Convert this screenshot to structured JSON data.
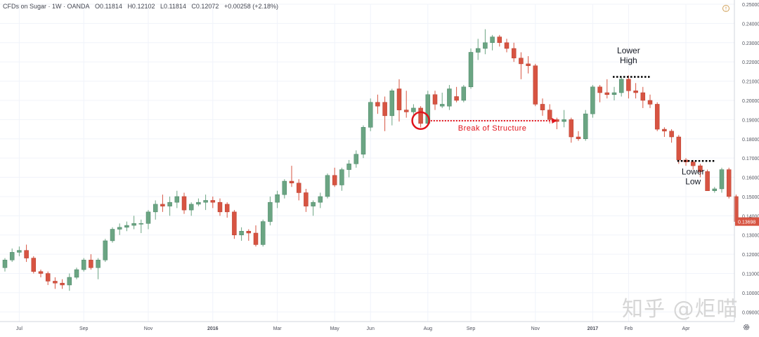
{
  "header": {
    "symbol": "CFDs on Sugar · 1W · OANDA",
    "open": "O0.11814",
    "high": "H0.12102",
    "low": "L0.11814",
    "close": "C0.12072",
    "change": "+0.00258 (+2.18%)"
  },
  "watermark": "知乎 @炬喵",
  "colors": {
    "bull": "#6ba583",
    "bear": "#d75442",
    "grid": "#f0f3fa",
    "axis_text": "#50535e",
    "annotation": "#e0141c",
    "price_tag": "#d75442"
  },
  "icons": {
    "settings": "gear-icon",
    "alert": "alert-icon"
  },
  "chart_data": {
    "type": "candlestick",
    "ylim": [
      0.085,
      0.25
    ],
    "y_ticks": [
      0.09,
      0.1,
      0.11,
      0.12,
      0.13,
      0.14,
      0.15,
      0.16,
      0.17,
      0.18,
      0.19,
      0.2,
      0.21,
      0.22,
      0.23,
      0.24,
      0.25
    ],
    "y_tick_labels": [
      "0.09000",
      "0.10000",
      "0.11000",
      "0.12000",
      "0.13000",
      "0.14000",
      "0.15000",
      "0.16000",
      "0.17000",
      "0.18000",
      "0.19000",
      "0.20000",
      "0.21000",
      "0.22000",
      "0.23000",
      "0.24000",
      "0.25000"
    ],
    "x_ticks": [
      {
        "label": "Jul",
        "index": 2,
        "bold": false
      },
      {
        "label": "Sep",
        "index": 11,
        "bold": false
      },
      {
        "label": "Nov",
        "index": 20,
        "bold": false
      },
      {
        "label": "2016",
        "index": 29,
        "bold": true
      },
      {
        "label": "Mar",
        "index": 38,
        "bold": false
      },
      {
        "label": "May",
        "index": 46,
        "bold": false
      },
      {
        "label": "Jun",
        "index": 51,
        "bold": false
      },
      {
        "label": "Aug",
        "index": 59,
        "bold": false
      },
      {
        "label": "Sep",
        "index": 65,
        "bold": false
      },
      {
        "label": "Nov",
        "index": 74,
        "bold": false
      },
      {
        "label": "2017",
        "index": 82,
        "bold": true
      },
      {
        "label": "Feb",
        "index": 87,
        "bold": false
      },
      {
        "label": "Apr",
        "index": 95,
        "bold": false
      }
    ],
    "last_price_label": "0.13698",
    "last_price": 0.13698,
    "candles": [
      {
        "o": 0.113,
        "h": 0.118,
        "l": 0.111,
        "c": 0.117
      },
      {
        "o": 0.117,
        "h": 0.123,
        "l": 0.116,
        "c": 0.121
      },
      {
        "o": 0.121,
        "h": 0.124,
        "l": 0.119,
        "c": 0.122
      },
      {
        "o": 0.122,
        "h": 0.125,
        "l": 0.116,
        "c": 0.118
      },
      {
        "o": 0.118,
        "h": 0.119,
        "l": 0.11,
        "c": 0.111
      },
      {
        "o": 0.111,
        "h": 0.112,
        "l": 0.108,
        "c": 0.11
      },
      {
        "o": 0.11,
        "h": 0.111,
        "l": 0.104,
        "c": 0.106
      },
      {
        "o": 0.106,
        "h": 0.108,
        "l": 0.102,
        "c": 0.105
      },
      {
        "o": 0.105,
        "h": 0.107,
        "l": 0.102,
        "c": 0.104
      },
      {
        "o": 0.104,
        "h": 0.11,
        "l": 0.101,
        "c": 0.108
      },
      {
        "o": 0.108,
        "h": 0.113,
        "l": 0.107,
        "c": 0.112
      },
      {
        "o": 0.112,
        "h": 0.118,
        "l": 0.111,
        "c": 0.117
      },
      {
        "o": 0.117,
        "h": 0.12,
        "l": 0.112,
        "c": 0.113
      },
      {
        "o": 0.113,
        "h": 0.118,
        "l": 0.107,
        "c": 0.117
      },
      {
        "o": 0.117,
        "h": 0.128,
        "l": 0.116,
        "c": 0.127
      },
      {
        "o": 0.127,
        "h": 0.134,
        "l": 0.126,
        "c": 0.133
      },
      {
        "o": 0.133,
        "h": 0.136,
        "l": 0.13,
        "c": 0.134
      },
      {
        "o": 0.134,
        "h": 0.137,
        "l": 0.132,
        "c": 0.135
      },
      {
        "o": 0.135,
        "h": 0.14,
        "l": 0.133,
        "c": 0.136
      },
      {
        "o": 0.136,
        "h": 0.138,
        "l": 0.131,
        "c": 0.136
      },
      {
        "o": 0.136,
        "h": 0.143,
        "l": 0.133,
        "c": 0.142
      },
      {
        "o": 0.142,
        "h": 0.148,
        "l": 0.138,
        "c": 0.146
      },
      {
        "o": 0.146,
        "h": 0.151,
        "l": 0.142,
        "c": 0.145
      },
      {
        "o": 0.145,
        "h": 0.15,
        "l": 0.14,
        "c": 0.147
      },
      {
        "o": 0.147,
        "h": 0.153,
        "l": 0.144,
        "c": 0.15
      },
      {
        "o": 0.15,
        "h": 0.152,
        "l": 0.141,
        "c": 0.143
      },
      {
        "o": 0.143,
        "h": 0.147,
        "l": 0.14,
        "c": 0.146
      },
      {
        "o": 0.146,
        "h": 0.149,
        "l": 0.145,
        "c": 0.147
      },
      {
        "o": 0.147,
        "h": 0.151,
        "l": 0.143,
        "c": 0.148
      },
      {
        "o": 0.148,
        "h": 0.15,
        "l": 0.144,
        "c": 0.147
      },
      {
        "o": 0.147,
        "h": 0.149,
        "l": 0.14,
        "c": 0.142
      },
      {
        "o": 0.146,
        "h": 0.147,
        "l": 0.139,
        "c": 0.142
      },
      {
        "o": 0.142,
        "h": 0.143,
        "l": 0.128,
        "c": 0.13
      },
      {
        "o": 0.13,
        "h": 0.134,
        "l": 0.127,
        "c": 0.132
      },
      {
        "o": 0.132,
        "h": 0.133,
        "l": 0.127,
        "c": 0.131
      },
      {
        "o": 0.131,
        "h": 0.135,
        "l": 0.124,
        "c": 0.125
      },
      {
        "o": 0.125,
        "h": 0.138,
        "l": 0.124,
        "c": 0.137
      },
      {
        "o": 0.137,
        "h": 0.15,
        "l": 0.135,
        "c": 0.147
      },
      {
        "o": 0.147,
        "h": 0.153,
        "l": 0.144,
        "c": 0.151
      },
      {
        "o": 0.151,
        "h": 0.159,
        "l": 0.149,
        "c": 0.158
      },
      {
        "o": 0.158,
        "h": 0.166,
        "l": 0.155,
        "c": 0.157
      },
      {
        "o": 0.157,
        "h": 0.159,
        "l": 0.148,
        "c": 0.152
      },
      {
        "o": 0.152,
        "h": 0.154,
        "l": 0.142,
        "c": 0.145
      },
      {
        "o": 0.145,
        "h": 0.148,
        "l": 0.14,
        "c": 0.147
      },
      {
        "o": 0.147,
        "h": 0.152,
        "l": 0.144,
        "c": 0.15
      },
      {
        "o": 0.15,
        "h": 0.162,
        "l": 0.149,
        "c": 0.161
      },
      {
        "o": 0.161,
        "h": 0.165,
        "l": 0.155,
        "c": 0.156
      },
      {
        "o": 0.156,
        "h": 0.165,
        "l": 0.153,
        "c": 0.164
      },
      {
        "o": 0.164,
        "h": 0.169,
        "l": 0.16,
        "c": 0.167
      },
      {
        "o": 0.167,
        "h": 0.174,
        "l": 0.165,
        "c": 0.172
      },
      {
        "o": 0.172,
        "h": 0.187,
        "l": 0.17,
        "c": 0.186
      },
      {
        "o": 0.186,
        "h": 0.201,
        "l": 0.184,
        "c": 0.199
      },
      {
        "o": 0.199,
        "h": 0.203,
        "l": 0.193,
        "c": 0.197
      },
      {
        "o": 0.199,
        "h": 0.202,
        "l": 0.184,
        "c": 0.192
      },
      {
        "o": 0.192,
        "h": 0.206,
        "l": 0.187,
        "c": 0.205
      },
      {
        "o": 0.206,
        "h": 0.211,
        "l": 0.189,
        "c": 0.195
      },
      {
        "o": 0.195,
        "h": 0.205,
        "l": 0.191,
        "c": 0.194
      },
      {
        "o": 0.194,
        "h": 0.198,
        "l": 0.191,
        "c": 0.196
      },
      {
        "o": 0.196,
        "h": 0.197,
        "l": 0.186,
        "c": 0.188
      },
      {
        "o": 0.188,
        "h": 0.205,
        "l": 0.187,
        "c": 0.203
      },
      {
        "o": 0.203,
        "h": 0.205,
        "l": 0.195,
        "c": 0.198
      },
      {
        "o": 0.197,
        "h": 0.204,
        "l": 0.196,
        "c": 0.198
      },
      {
        "o": 0.197,
        "h": 0.208,
        "l": 0.195,
        "c": 0.206
      },
      {
        "o": 0.202,
        "h": 0.207,
        "l": 0.199,
        "c": 0.2
      },
      {
        "o": 0.2,
        "h": 0.208,
        "l": 0.199,
        "c": 0.207
      },
      {
        "o": 0.207,
        "h": 0.227,
        "l": 0.206,
        "c": 0.225
      },
      {
        "o": 0.225,
        "h": 0.232,
        "l": 0.221,
        "c": 0.227
      },
      {
        "o": 0.227,
        "h": 0.237,
        "l": 0.224,
        "c": 0.23
      },
      {
        "o": 0.23,
        "h": 0.234,
        "l": 0.226,
        "c": 0.233
      },
      {
        "o": 0.233,
        "h": 0.234,
        "l": 0.228,
        "c": 0.23
      },
      {
        "o": 0.23,
        "h": 0.232,
        "l": 0.225,
        "c": 0.227
      },
      {
        "o": 0.227,
        "h": 0.23,
        "l": 0.22,
        "c": 0.222
      },
      {
        "o": 0.222,
        "h": 0.225,
        "l": 0.211,
        "c": 0.219
      },
      {
        "o": 0.219,
        "h": 0.223,
        "l": 0.214,
        "c": 0.218
      },
      {
        "o": 0.218,
        "h": 0.219,
        "l": 0.197,
        "c": 0.198
      },
      {
        "o": 0.198,
        "h": 0.201,
        "l": 0.192,
        "c": 0.195
      },
      {
        "o": 0.195,
        "h": 0.198,
        "l": 0.188,
        "c": 0.19
      },
      {
        "o": 0.19,
        "h": 0.191,
        "l": 0.185,
        "c": 0.189
      },
      {
        "o": 0.189,
        "h": 0.195,
        "l": 0.186,
        "c": 0.19
      },
      {
        "o": 0.19,
        "h": 0.191,
        "l": 0.178,
        "c": 0.181
      },
      {
        "o": 0.181,
        "h": 0.184,
        "l": 0.179,
        "c": 0.18
      },
      {
        "o": 0.18,
        "h": 0.195,
        "l": 0.179,
        "c": 0.193
      },
      {
        "o": 0.193,
        "h": 0.208,
        "l": 0.191,
        "c": 0.207
      },
      {
        "o": 0.207,
        "h": 0.208,
        "l": 0.199,
        "c": 0.204
      },
      {
        "o": 0.204,
        "h": 0.211,
        "l": 0.201,
        "c": 0.203
      },
      {
        "o": 0.203,
        "h": 0.207,
        "l": 0.2,
        "c": 0.204
      },
      {
        "o": 0.204,
        "h": 0.212,
        "l": 0.202,
        "c": 0.211
      },
      {
        "o": 0.211,
        "h": 0.213,
        "l": 0.201,
        "c": 0.205
      },
      {
        "o": 0.205,
        "h": 0.209,
        "l": 0.201,
        "c": 0.204
      },
      {
        "o": 0.204,
        "h": 0.207,
        "l": 0.196,
        "c": 0.2
      },
      {
        "o": 0.2,
        "h": 0.203,
        "l": 0.196,
        "c": 0.198
      },
      {
        "o": 0.198,
        "h": 0.199,
        "l": 0.184,
        "c": 0.185
      },
      {
        "o": 0.185,
        "h": 0.186,
        "l": 0.181,
        "c": 0.184
      },
      {
        "o": 0.184,
        "h": 0.185,
        "l": 0.178,
        "c": 0.181
      },
      {
        "o": 0.181,
        "h": 0.182,
        "l": 0.167,
        "c": 0.169
      },
      {
        "o": 0.169,
        "h": 0.17,
        "l": 0.166,
        "c": 0.168
      },
      {
        "o": 0.168,
        "h": 0.169,
        "l": 0.164,
        "c": 0.166
      },
      {
        "o": 0.166,
        "h": 0.167,
        "l": 0.16,
        "c": 0.163
      },
      {
        "o": 0.163,
        "h": 0.164,
        "l": 0.153,
        "c": 0.153
      },
      {
        "o": 0.153,
        "h": 0.155,
        "l": 0.152,
        "c": 0.154
      },
      {
        "o": 0.154,
        "h": 0.165,
        "l": 0.152,
        "c": 0.164
      },
      {
        "o": 0.164,
        "h": 0.165,
        "l": 0.149,
        "c": 0.15
      },
      {
        "o": 0.15,
        "h": 0.151,
        "l": 0.137,
        "c": 0.137
      }
    ],
    "annotations": [
      {
        "type": "text",
        "lines": [
          "Lower",
          "High"
        ],
        "anchor_index": 87,
        "price": 0.2245
      },
      {
        "type": "dotted_level",
        "from_index": 85,
        "to_index": 90,
        "price": 0.2122
      },
      {
        "type": "text",
        "lines": [
          "Lower",
          "Low"
        ],
        "anchor_index": 96,
        "price": 0.1615
      },
      {
        "type": "dotted_level",
        "from_index": 94,
        "to_index": 99,
        "price": 0.1685
      },
      {
        "type": "circle",
        "index": 58,
        "price": 0.1895
      },
      {
        "type": "arrow",
        "from_index": 59,
        "to_index": 77,
        "price": 0.1894
      },
      {
        "type": "label",
        "text": "Break of Structure",
        "anchor_index": 68,
        "price": 0.1843
      }
    ]
  }
}
